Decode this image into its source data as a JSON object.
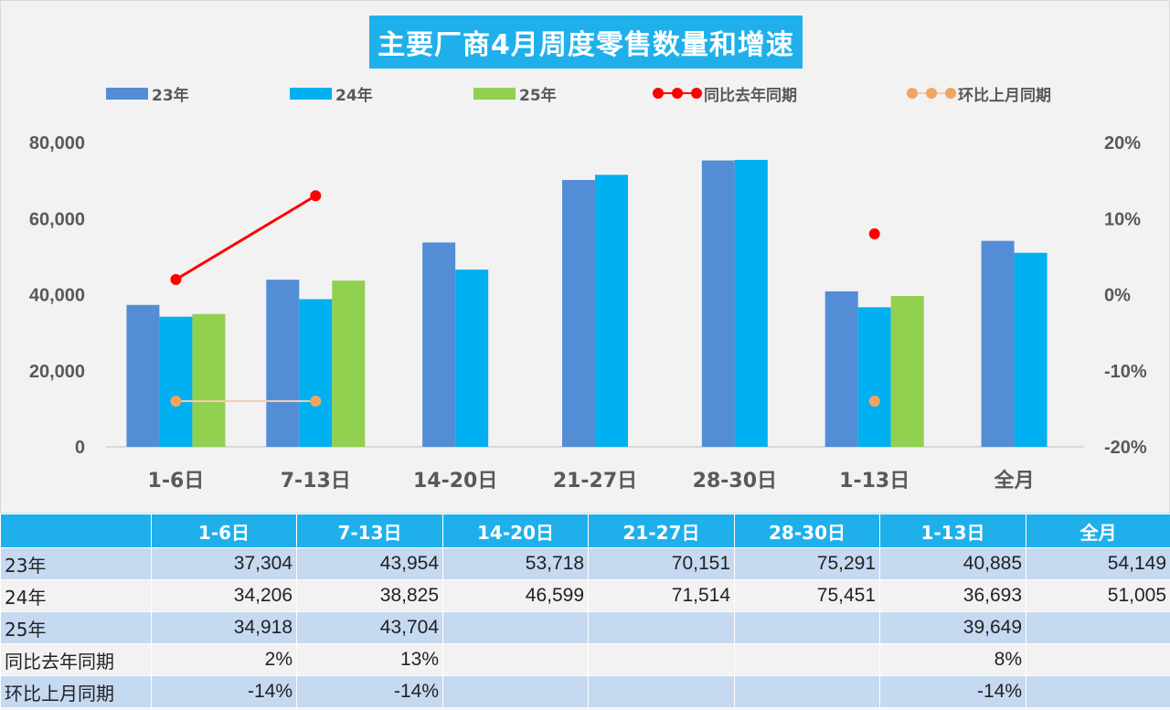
{
  "title": "主要厂商4月周度零售数量和增速",
  "colors": {
    "y23": "#538dd5",
    "y24": "#00b0f0",
    "y25": "#92d050",
    "yoy": "#ff0000",
    "mom_line": "#f8cbad",
    "mom_dot": "#f4a460",
    "title_bg": "#1fb0ec"
  },
  "legend": [
    {
      "label": "23年",
      "kind": "bar",
      "color": "#538dd5"
    },
    {
      "label": "24年",
      "kind": "bar",
      "color": "#00b0f0"
    },
    {
      "label": "25年",
      "kind": "bar",
      "color": "#92d050"
    },
    {
      "label": "同比去年同期",
      "kind": "line",
      "color": "#ff0000"
    },
    {
      "label": "环比上月同期",
      "kind": "line",
      "color": "#f8cbad"
    }
  ],
  "chart_data": {
    "type": "bar",
    "categories": [
      "1-6日",
      "7-13日",
      "14-20日",
      "21-27日",
      "28-30日",
      "1-13日",
      "全月"
    ],
    "series": [
      {
        "name": "23年",
        "values": [
          37304,
          43954,
          53718,
          70151,
          75291,
          40885,
          54149
        ]
      },
      {
        "name": "24年",
        "values": [
          34206,
          38825,
          46599,
          71514,
          75451,
          36693,
          51005
        ]
      },
      {
        "name": "25年",
        "values": [
          34918,
          43704,
          null,
          null,
          null,
          39649,
          null
        ]
      }
    ],
    "line_series": [
      {
        "name": "同比去年同期",
        "axis": "right",
        "values": [
          2,
          13,
          null,
          null,
          null,
          8,
          null
        ]
      },
      {
        "name": "环比上月同期",
        "axis": "right",
        "values": [
          -14,
          -14,
          null,
          null,
          null,
          -14,
          null
        ]
      }
    ],
    "ylim": [
      0,
      80000
    ],
    "y_ticks": [
      "0",
      "20,000",
      "40,000",
      "60,000",
      "80,000"
    ],
    "y2lim": [
      -20,
      20
    ],
    "y2_ticks": [
      "-20%",
      "-10%",
      "0%",
      "10%",
      "20%"
    ],
    "grid": false,
    "legend_position": "top"
  },
  "table": {
    "headers": [
      "",
      "1-6日",
      "7-13日",
      "14-20日",
      "21-27日",
      "28-30日",
      "1-13日",
      "全月"
    ],
    "rows": [
      [
        "23年",
        "37,304",
        "43,954",
        "53,718",
        "70,151",
        "75,291",
        "40,885",
        "54,149"
      ],
      [
        "24年",
        "34,206",
        "38,825",
        "46,599",
        "71,514",
        "75,451",
        "36,693",
        "51,005"
      ],
      [
        "25年",
        "34,918",
        "43,704",
        "",
        "",
        "",
        "39,649",
        ""
      ],
      [
        "同比去年同期",
        "2%",
        "13%",
        "",
        "",
        "",
        "8%",
        ""
      ],
      [
        "环比上月同期",
        "-14%",
        "-14%",
        "",
        "",
        "",
        "-14%",
        ""
      ]
    ]
  }
}
